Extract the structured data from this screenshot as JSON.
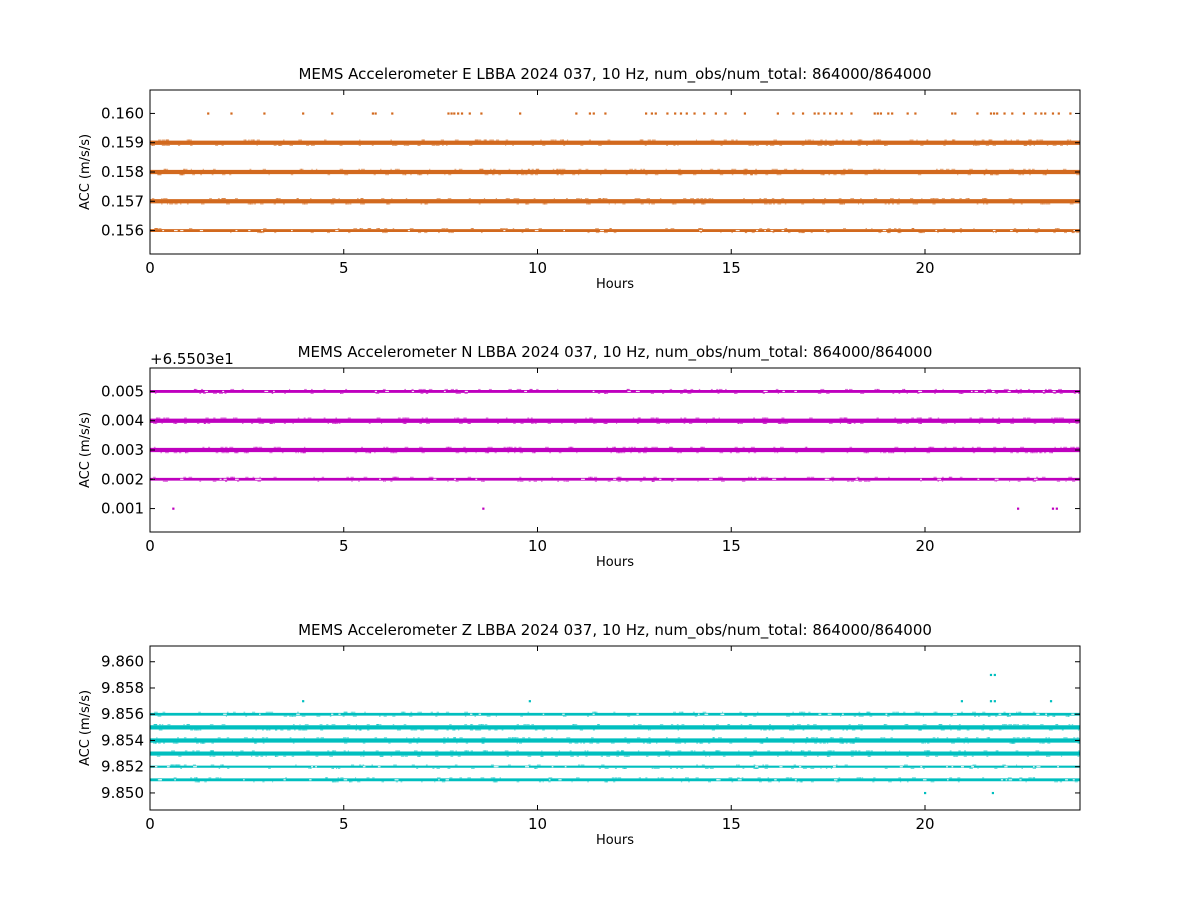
{
  "chart_data": [
    {
      "type": "scatter",
      "title": "MEMS Accelerometer E LBBA 2024 037, 10 Hz, num_obs/num_total: 864000/864000",
      "xlabel": "Hours",
      "ylabel": "ACC (m/s/s)",
      "offset_text": "",
      "xlim": [
        0,
        24
      ],
      "ylim": [
        0.1552,
        0.1608
      ],
      "xticks": [
        0,
        5,
        10,
        15,
        20
      ],
      "xtick_labels": [
        "0",
        "5",
        "10",
        "15",
        "20"
      ],
      "yticks": [
        0.156,
        0.157,
        0.158,
        0.159,
        0.16
      ],
      "ytick_labels": [
        "0.156",
        "0.157",
        "0.158",
        "0.159",
        "0.160"
      ],
      "color": "#d2691e",
      "grid": false,
      "bands": [
        {
          "y": 0.156,
          "x_range": [
            0,
            24
          ],
          "density": "medium"
        },
        {
          "y": 0.157,
          "x_range": [
            0,
            24
          ],
          "density": "heavy"
        },
        {
          "y": 0.158,
          "x_range": [
            0,
            24
          ],
          "density": "heavy"
        },
        {
          "y": 0.159,
          "x_range": [
            0,
            24
          ],
          "density": "heavy"
        }
      ],
      "sparse_points": [
        {
          "y": 0.16,
          "x": [
            1.5,
            2.1,
            2.95,
            3.95,
            4.7,
            5.75,
            5.82,
            6.25,
            7.7,
            7.78,
            7.85,
            7.95,
            8.05,
            8.25,
            8.55,
            9.55,
            11.0,
            11.35,
            11.45,
            11.75,
            12.8,
            12.95,
            13.05,
            13.35,
            13.55,
            13.7,
            13.85,
            14.05,
            14.3,
            14.6,
            14.85,
            15.35,
            16.2,
            16.6,
            16.85,
            17.15,
            17.25,
            17.4,
            17.55,
            17.7,
            17.85,
            18.1,
            18.7,
            18.78,
            18.86,
            19.05,
            19.15,
            19.55,
            19.75,
            20.7,
            20.78,
            21.35,
            21.7,
            21.78,
            21.86,
            22.05,
            22.25,
            22.55,
            22.85,
            23.0,
            23.1,
            23.3,
            23.45,
            23.75
          ]
        }
      ]
    },
    {
      "type": "scatter",
      "title": "MEMS Accelerometer N LBBA 2024 037, 10 Hz, num_obs/num_total: 864000/864000",
      "xlabel": "Hours",
      "ylabel": "ACC (m/s/s)",
      "offset_text": "+6.5503e1",
      "xlim": [
        0,
        24
      ],
      "ylim": [
        0.0002,
        0.0058
      ],
      "xticks": [
        0,
        5,
        10,
        15,
        20
      ],
      "xtick_labels": [
        "0",
        "5",
        "10",
        "15",
        "20"
      ],
      "yticks": [
        0.001,
        0.002,
        0.003,
        0.004,
        0.005
      ],
      "ytick_labels": [
        "0.001",
        "0.002",
        "0.003",
        "0.004",
        "0.005"
      ],
      "color": "#bf00bf",
      "grid": false,
      "bands": [
        {
          "y": 0.002,
          "x_range": [
            0,
            24
          ],
          "density": "medium"
        },
        {
          "y": 0.003,
          "x_range": [
            0,
            24
          ],
          "density": "heavy"
        },
        {
          "y": 0.004,
          "x_range": [
            0,
            24
          ],
          "density": "heavy"
        },
        {
          "y": 0.005,
          "x_range": [
            0,
            24
          ],
          "density": "medium"
        }
      ],
      "sparse_points": [
        {
          "y": 0.001,
          "x": [
            0.6,
            8.6,
            22.4,
            23.3,
            23.4
          ]
        }
      ]
    },
    {
      "type": "scatter",
      "title": "MEMS Accelerometer Z LBBA 2024 037, 10 Hz, num_obs/num_total: 864000/864000",
      "xlabel": "Hours",
      "ylabel": "ACC (m/s/s)",
      "offset_text": "",
      "xlim": [
        0,
        24
      ],
      "ylim": [
        9.8487,
        9.8612
      ],
      "xticks": [
        0,
        5,
        10,
        15,
        20
      ],
      "xtick_labels": [
        "0",
        "5",
        "10",
        "15",
        "20"
      ],
      "yticks": [
        9.85,
        9.852,
        9.854,
        9.856,
        9.858,
        9.86
      ],
      "ytick_labels": [
        "9.850",
        "9.852",
        "9.854",
        "9.856",
        "9.858",
        "9.860"
      ],
      "color": "#00bfbf",
      "grid": false,
      "bands": [
        {
          "y": 9.851,
          "x_range": [
            0,
            24
          ],
          "density": "medium"
        },
        {
          "y": 9.852,
          "x_range": [
            0,
            24
          ],
          "density": "light"
        },
        {
          "y": 9.853,
          "x_range": [
            0,
            24
          ],
          "density": "heavy"
        },
        {
          "y": 9.854,
          "x_range": [
            0,
            24
          ],
          "density": "heavy"
        },
        {
          "y": 9.855,
          "x_range": [
            0,
            24
          ],
          "density": "heavy"
        },
        {
          "y": 9.856,
          "x_range": [
            0,
            24
          ],
          "density": "medium"
        }
      ],
      "sparse_points": [
        {
          "y": 9.857,
          "x": [
            3.95,
            9.8,
            20.95,
            21.7,
            21.8,
            23.25
          ]
        },
        {
          "y": 9.859,
          "x": [
            21.7,
            21.8
          ]
        },
        {
          "y": 9.85,
          "x": [
            20.0,
            21.75
          ]
        }
      ]
    }
  ]
}
